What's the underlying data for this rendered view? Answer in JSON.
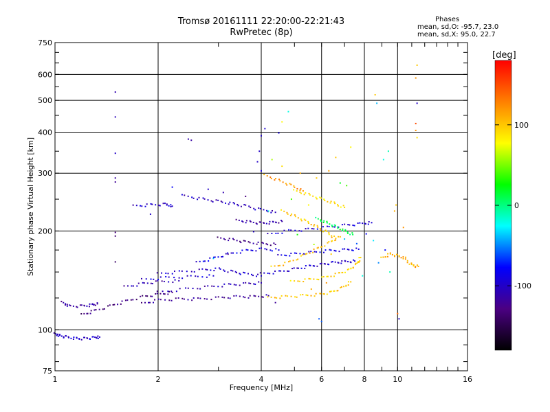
{
  "chart_data": {
    "type": "scatter",
    "title": "Tromsø 20161111 22:20:00-22:21:43",
    "subtitle": "RwPretec (8p)",
    "xlabel": "Frequency [MHz]",
    "ylabel": "Stationary phase Virtual Height [km]",
    "x_scale": "log",
    "y_scale": "log",
    "xlim": [
      1,
      16
    ],
    "ylim": [
      75,
      750
    ],
    "x_ticks": [
      {
        "value": 1,
        "label": "1"
      },
      {
        "value": 2,
        "label": "2"
      },
      {
        "value": 4,
        "label": "4"
      },
      {
        "value": 6,
        "label": "6"
      },
      {
        "value": 8,
        "label": "8"
      },
      {
        "value": 10,
        "label": "10"
      },
      {
        "value": 16,
        "label": "16"
      }
    ],
    "y_ticks": [
      {
        "value": 75,
        "label": "75"
      },
      {
        "value": 100,
        "label": "100"
      },
      {
        "value": 200,
        "label": "200"
      },
      {
        "value": 300,
        "label": "300"
      },
      {
        "value": 400,
        "label": "400"
      },
      {
        "value": 500,
        "label": "500"
      },
      {
        "value": 600,
        "label": "600"
      },
      {
        "value": 750,
        "label": "750"
      }
    ],
    "grid": true,
    "stats": {
      "heading": "Phases",
      "line_o": "mean, sd,O: -95.7, 23.0",
      "line_x": "mean, sd,X:  95.0, 22.7"
    },
    "colorbar": {
      "label": "[deg]",
      "range": [
        -180,
        180
      ],
      "ticks": [
        {
          "value": 100,
          "label": "100"
        },
        {
          "value": 0,
          "label": "0"
        },
        {
          "value": -100,
          "label": "-100"
        }
      ],
      "colormap": [
        "#000000",
        "#4b0082",
        "#0000ff",
        "#00ffff",
        "#00ff00",
        "#ffff00",
        "#ff8000",
        "#ff0000"
      ]
    },
    "traces": [
      {
        "name": "",
        "phase": -100,
        "points": [
          [
            1.0,
            97
          ],
          [
            1.03,
            96
          ],
          [
            1.08,
            95
          ],
          [
            1.15,
            94
          ],
          [
            1.22,
            94
          ],
          [
            1.3,
            94.5
          ],
          [
            1.35,
            95
          ]
        ]
      },
      {
        "name": "",
        "phase": -115,
        "points": [
          [
            1.05,
            121
          ],
          [
            1.1,
            118
          ],
          [
            1.2,
            118
          ],
          [
            1.28,
            119
          ],
          [
            1.33,
            120
          ]
        ]
      },
      {
        "name": "",
        "phase": -130,
        "points": [
          [
            1.2,
            111
          ],
          [
            1.3,
            114
          ],
          [
            1.45,
            118
          ],
          [
            1.6,
            122
          ],
          [
            1.8,
            126
          ],
          [
            2.0,
            128
          ],
          [
            2.2,
            130
          ]
        ]
      },
      {
        "name": "",
        "phase": -120,
        "points": [
          [
            1.8,
            120
          ],
          [
            2.0,
            123
          ],
          [
            2.3,
            124
          ],
          [
            2.6,
            124
          ],
          [
            3.0,
            125
          ],
          [
            3.4,
            126
          ],
          [
            3.8,
            126
          ],
          [
            4.2,
            127
          ]
        ]
      },
      {
        "name": "",
        "phase": -108,
        "points": [
          [
            2.0,
            130
          ],
          [
            2.4,
            133
          ],
          [
            2.8,
            135
          ],
          [
            3.2,
            137
          ],
          [
            3.6,
            138
          ],
          [
            4.0,
            139
          ]
        ]
      },
      {
        "name": "",
        "phase": -100,
        "points": [
          [
            2.0,
            148
          ],
          [
            2.3,
            150
          ],
          [
            2.7,
            152
          ],
          [
            3.0,
            153
          ],
          [
            3.3,
            150
          ],
          [
            3.6,
            148
          ],
          [
            4.0,
            146
          ]
        ]
      },
      {
        "name": "",
        "phase": -95,
        "points": [
          [
            1.8,
            142
          ],
          [
            2.1,
            144
          ],
          [
            2.5,
            145
          ],
          [
            2.9,
            146
          ]
        ]
      },
      {
        "name": "",
        "phase": -110,
        "points": [
          [
            1.6,
            135
          ],
          [
            1.8,
            138
          ],
          [
            2.0,
            140
          ],
          [
            2.3,
            141
          ]
        ]
      },
      {
        "name": "",
        "phase": -90,
        "points": [
          [
            2.6,
            160
          ],
          [
            2.9,
            165
          ],
          [
            3.2,
            170
          ],
          [
            3.6,
            174
          ],
          [
            4.0,
            176
          ],
          [
            4.5,
            175
          ]
        ]
      },
      {
        "name": "",
        "phase": -115,
        "points": [
          [
            3.4,
            215
          ],
          [
            3.7,
            213
          ],
          [
            4.0,
            211
          ],
          [
            4.3,
            212
          ],
          [
            4.6,
            214
          ]
        ]
      },
      {
        "name": "",
        "phase": -100,
        "points": [
          [
            1.7,
            238
          ],
          [
            1.9,
            240
          ],
          [
            2.1,
            241
          ],
          [
            2.2,
            238
          ]
        ]
      },
      {
        "name": "",
        "phase": -105,
        "points": [
          [
            2.4,
            255
          ],
          [
            2.7,
            250
          ],
          [
            3.0,
            246
          ],
          [
            3.3,
            242
          ],
          [
            3.6,
            238
          ],
          [
            4.0,
            232
          ],
          [
            4.4,
            228
          ]
        ]
      },
      {
        "name": "",
        "phase": -125,
        "points": [
          [
            3.0,
            190
          ],
          [
            3.3,
            188
          ],
          [
            3.6,
            185
          ],
          [
            4.0,
            183
          ],
          [
            4.4,
            182
          ]
        ]
      },
      {
        "name": "",
        "phase": -100,
        "points": [
          [
            4.0,
            148
          ],
          [
            4.5,
            150
          ],
          [
            5.0,
            153
          ],
          [
            5.5,
            156
          ],
          [
            6.0,
            158
          ],
          [
            6.5,
            160
          ],
          [
            7.0,
            161
          ],
          [
            7.5,
            162
          ]
        ]
      },
      {
        "name": "",
        "phase": -95,
        "points": [
          [
            4.2,
            195
          ],
          [
            4.8,
            200
          ],
          [
            5.5,
            202
          ],
          [
            6.2,
            205
          ],
          [
            7.0,
            208
          ],
          [
            7.8,
            210
          ],
          [
            8.4,
            212
          ]
        ]
      },
      {
        "name": "",
        "phase": -90,
        "points": [
          [
            4.5,
            168
          ],
          [
            5.0,
            170
          ],
          [
            5.6,
            172
          ],
          [
            6.3,
            174
          ],
          [
            7.0,
            175
          ],
          [
            7.7,
            176
          ]
        ]
      },
      {
        "name": "",
        "phase": 100,
        "points": [
          [
            4.2,
            125
          ],
          [
            4.7,
            126
          ],
          [
            5.3,
            127
          ],
          [
            5.9,
            128
          ],
          [
            6.4,
            130
          ],
          [
            6.9,
            134
          ],
          [
            7.3,
            140
          ]
        ]
      },
      {
        "name": "",
        "phase": 95,
        "points": [
          [
            4.9,
            140
          ],
          [
            5.5,
            142
          ],
          [
            6.1,
            144
          ],
          [
            6.7,
            148
          ],
          [
            7.2,
            152
          ],
          [
            7.6,
            158
          ],
          [
            7.8,
            166
          ]
        ]
      },
      {
        "name": "",
        "phase": 105,
        "points": [
          [
            4.3,
            155
          ],
          [
            4.8,
            160
          ],
          [
            5.3,
            168
          ],
          [
            5.8,
            176
          ],
          [
            6.3,
            184
          ],
          [
            6.8,
            192
          ]
        ]
      },
      {
        "name": "",
        "phase": 100,
        "points": [
          [
            4.6,
            230
          ],
          [
            5.0,
            222
          ],
          [
            5.4,
            214
          ],
          [
            5.8,
            206
          ],
          [
            6.2,
            198
          ],
          [
            6.6,
            190
          ]
        ]
      },
      {
        "name": "",
        "phase": 110,
        "points": [
          [
            9.0,
            165
          ],
          [
            9.5,
            170
          ],
          [
            10.0,
            168
          ],
          [
            10.5,
            165
          ],
          [
            11.0,
            157
          ],
          [
            11.5,
            156
          ]
        ]
      },
      {
        "name": "",
        "phase": 90,
        "points": [
          [
            5.0,
            265
          ],
          [
            5.5,
            258
          ],
          [
            6.0,
            250
          ],
          [
            6.5,
            243
          ],
          [
            7.0,
            236
          ]
        ]
      },
      {
        "name": "",
        "phase": 10,
        "points": [
          [
            5.8,
            218
          ],
          [
            6.2,
            212
          ],
          [
            6.6,
            206
          ],
          [
            7.0,
            200
          ],
          [
            7.4,
            195
          ]
        ]
      },
      {
        "name": "",
        "phase": 120,
        "points": [
          [
            4.1,
            295
          ],
          [
            4.5,
            285
          ],
          [
            4.9,
            275
          ],
          [
            5.3,
            265
          ]
        ]
      }
    ],
    "scatter_points": [
      [
        1.5,
        530,
        -110
      ],
      [
        1.5,
        445,
        -105
      ],
      [
        1.5,
        345,
        -100
      ],
      [
        1.5,
        290,
        -115
      ],
      [
        1.5,
        282,
        -120
      ],
      [
        1.5,
        198,
        -130
      ],
      [
        1.5,
        193,
        -135
      ],
      [
        1.5,
        161,
        -140
      ],
      [
        2.45,
        381,
        -110
      ],
      [
        2.5,
        378,
        -115
      ],
      [
        4.0,
        390,
        -100
      ],
      [
        4.1,
        410,
        -95
      ],
      [
        4.5,
        398,
        -90
      ],
      [
        4.8,
        462,
        -20
      ],
      [
        4.6,
        430,
        80
      ],
      [
        3.95,
        350,
        -100
      ],
      [
        3.9,
        325,
        -100
      ],
      [
        4.0,
        305,
        -90
      ],
      [
        4.3,
        330,
        60
      ],
      [
        4.6,
        315,
        90
      ],
      [
        5.2,
        300,
        110
      ],
      [
        5.8,
        290,
        100
      ],
      [
        6.3,
        305,
        115
      ],
      [
        6.8,
        280,
        20
      ],
      [
        7.1,
        275,
        40
      ],
      [
        7.3,
        360,
        80
      ],
      [
        6.6,
        335,
        100
      ],
      [
        8.6,
        520,
        100
      ],
      [
        8.7,
        490,
        -40
      ],
      [
        9.1,
        330,
        -20
      ],
      [
        9.4,
        350,
        -10
      ],
      [
        9.8,
        230,
        110
      ],
      [
        10.4,
        205,
        120
      ],
      [
        11.4,
        640,
        100
      ],
      [
        11.3,
        585,
        120
      ],
      [
        11.4,
        490,
        -100
      ],
      [
        11.3,
        425,
        150
      ],
      [
        11.3,
        405,
        120
      ],
      [
        11.4,
        385,
        90
      ],
      [
        10.0,
        112,
        140
      ],
      [
        10.1,
        108,
        -100
      ],
      [
        9.9,
        240,
        100
      ],
      [
        9.5,
        150,
        -10
      ],
      [
        5.9,
        108,
        -60
      ],
      [
        6.0,
        106,
        -60
      ],
      [
        3.8,
        199,
        -100
      ],
      [
        3.2,
        170,
        -120
      ],
      [
        2.9,
        165,
        -40
      ],
      [
        4.2,
        230,
        -20
      ],
      [
        4.9,
        250,
        40
      ],
      [
        5.5,
        240,
        80
      ],
      [
        3.6,
        255,
        -130
      ],
      [
        3.1,
        262,
        -110
      ],
      [
        2.8,
        268,
        -100
      ],
      [
        2.2,
        272,
        -80
      ],
      [
        1.9,
        225,
        -100
      ],
      [
        2.35,
        258,
        -90
      ],
      [
        5.1,
        195,
        30
      ],
      [
        5.7,
        182,
        60
      ],
      [
        6.4,
        170,
        100
      ],
      [
        7.0,
        189,
        -40
      ],
      [
        7.6,
        183,
        -60
      ],
      [
        8.1,
        196,
        -80
      ],
      [
        8.5,
        187,
        -30
      ],
      [
        4.4,
        121,
        -120
      ],
      [
        5.6,
        133,
        110
      ],
      [
        6.2,
        139,
        120
      ],
      [
        7.9,
        146,
        -20
      ],
      [
        8.8,
        160,
        -50
      ],
      [
        9.2,
        175,
        -80
      ]
    ]
  }
}
